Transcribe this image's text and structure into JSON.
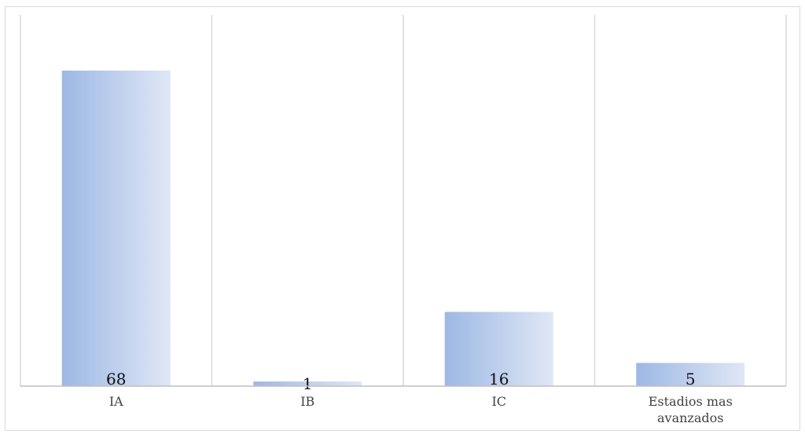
{
  "chart_data": {
    "type": "bar",
    "title": "",
    "xlabel": "",
    "ylabel": "",
    "categories": [
      [
        "IA"
      ],
      [
        "IB"
      ],
      [
        "IC"
      ],
      [
        "Estadios mas",
        "avanzados"
      ]
    ],
    "values": [
      68,
      1,
      16,
      5
    ],
    "data_labels": [
      "68",
      "1",
      "16",
      "5"
    ],
    "ylim": [
      0,
      80
    ],
    "grid": "vertical category separators",
    "legend": "none",
    "colors": {
      "bar_gradient_start": "#9db8e4",
      "bar_gradient_end": "#dfe7f5",
      "grid": "#d9d9d9",
      "axis": "#bfbfbf",
      "text": "#404040"
    }
  }
}
